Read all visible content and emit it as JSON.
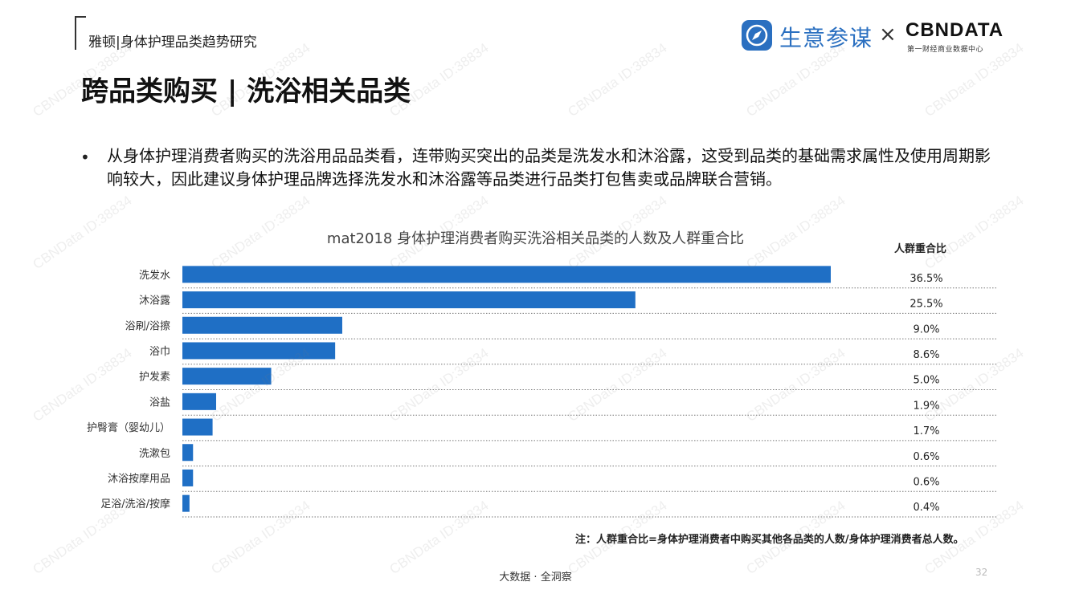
{
  "header": {
    "title": "雅顿|身体护理品类趋势研究"
  },
  "logo": {
    "brand_name": "生意参谋",
    "times": "×",
    "cbn_name": "CBNDATA",
    "cbn_sub": "第一财经商业数据中心"
  },
  "page_title": "跨品类购买 | 洗浴相关品类",
  "bullet": {
    "symbol": "•",
    "text": "从身体护理消费者购买的洗浴用品品类看，连带购买突出的品类是洗发水和沐浴露，这受到品类的基础需求属性及使用周期影响较大，因此建议身体护理品牌选择洗发水和沐浴露等品类进行品类打包售卖或品牌联合营销。"
  },
  "chart_data": {
    "type": "bar",
    "orientation": "horizontal",
    "title": "mat2018 身体护理消费者购买洗浴相关品类的人数及人群重合比",
    "value_column_header": "人群重合比",
    "categories": [
      "洗发水",
      "沐浴露",
      "浴刷/浴擦",
      "浴巾",
      "护发素",
      "浴盐",
      "护臀膏（婴幼儿）",
      "洗漱包",
      "沐浴按摩用品",
      "足浴/洗浴/按摩"
    ],
    "values": [
      36.5,
      25.5,
      9.0,
      8.6,
      5.0,
      1.9,
      1.7,
      0.6,
      0.6,
      0.4
    ],
    "value_labels": [
      "36.5%",
      "25.5%",
      "9.0%",
      "8.6%",
      "5.0%",
      "1.9%",
      "1.7%",
      "0.6%",
      "0.6%",
      "0.4%"
    ],
    "bar_color": "#1f6fc5",
    "grid": false
  },
  "note": "注：人群重合比=身体护理消费者中购买其他各品类的人数/身体护理消费者总人数。",
  "footer": {
    "text": "大数据 · 全洞察",
    "page_number": "32"
  },
  "watermark": {
    "text": "CBNData ID:38834"
  }
}
